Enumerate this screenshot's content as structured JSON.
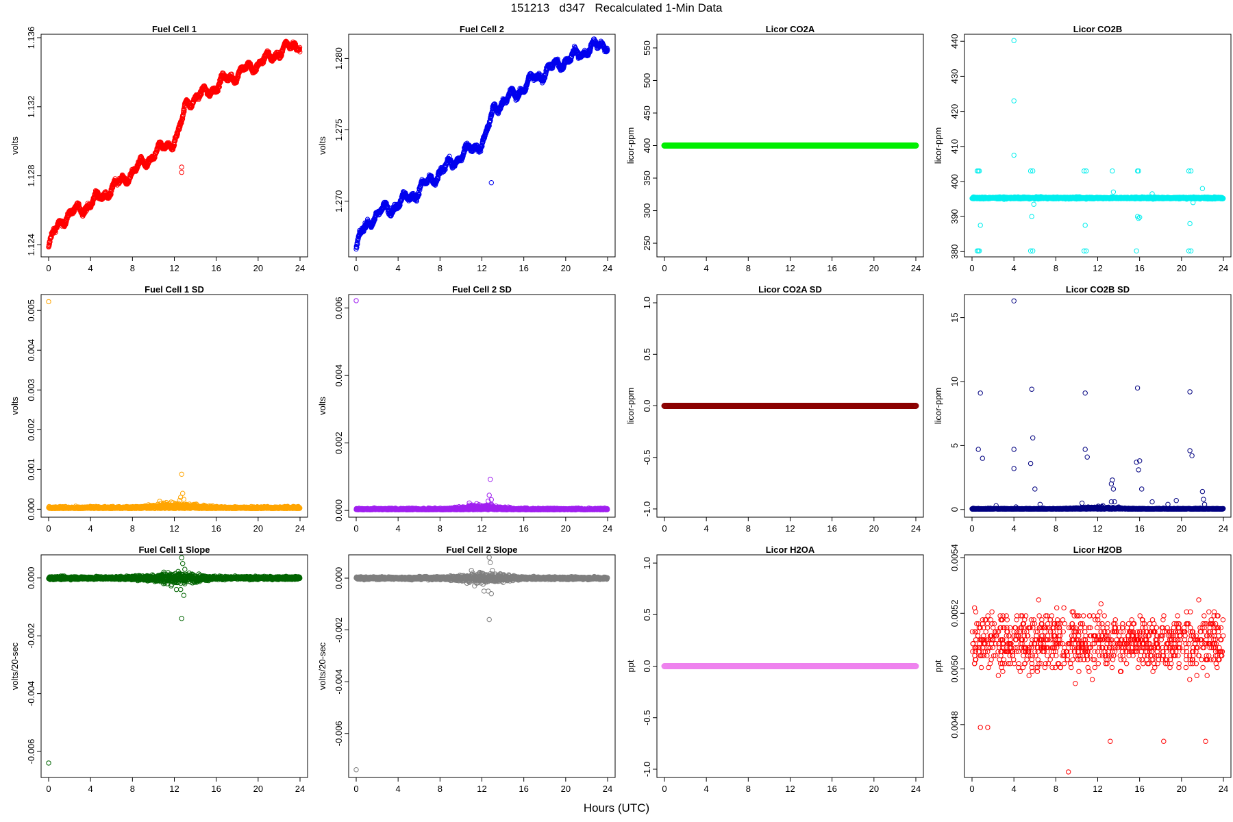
{
  "title": "151213   d347   Recalculated 1-Min Data",
  "xlabel_common": "Hours (UTC)",
  "chart_data": [
    {
      "type": "scatter",
      "title": "Fuel Cell 1",
      "ylabel": "volts",
      "color": "#ff0000",
      "xlim": [
        0,
        24
      ],
      "ylim": [
        1.1233,
        1.1362
      ],
      "xticks": [
        0,
        4,
        8,
        12,
        16,
        20,
        24
      ],
      "yticks": [
        1.124,
        1.128,
        1.132,
        1.136
      ],
      "ytick_labels": [
        "1.124",
        "1.128",
        "1.132",
        "1.136"
      ],
      "pattern": "trend",
      "trend_points": [
        [
          0,
          1.1238
        ],
        [
          0.6,
          1.1248
        ],
        [
          1.5,
          1.1256
        ],
        [
          2.5,
          1.1259
        ],
        [
          3.5,
          1.1262
        ],
        [
          5.5,
          1.127
        ],
        [
          8,
          1.1282
        ],
        [
          10,
          1.1292
        ],
        [
          12.3,
          1.1302
        ],
        [
          13.2,
          1.1323
        ],
        [
          15,
          1.1328
        ],
        [
          17,
          1.1336
        ],
        [
          19,
          1.1342
        ],
        [
          21,
          1.1348
        ],
        [
          22,
          1.1352
        ],
        [
          24,
          1.1357
        ]
      ],
      "spread": 0.0004,
      "outliers": [
        [
          12.7,
          1.1282
        ],
        [
          12.7,
          1.1285
        ]
      ]
    },
    {
      "type": "scatter",
      "title": "Fuel Cell 2",
      "ylabel": "volts",
      "color": "#0000ee",
      "xlim": [
        0,
        24
      ],
      "ylim": [
        1.2661,
        1.2817
      ],
      "xticks": [
        0,
        4,
        8,
        12,
        16,
        20,
        24
      ],
      "yticks": [
        1.27,
        1.275,
        1.28
      ],
      "ytick_labels": [
        "1.270",
        "1.275",
        "1.280"
      ],
      "pattern": "trend",
      "trend_points": [
        [
          0,
          1.2666
        ],
        [
          0.6,
          1.2679
        ],
        [
          1.5,
          1.2688
        ],
        [
          2.5,
          1.2693
        ],
        [
          3.5,
          1.2696
        ],
        [
          5.5,
          1.2705
        ],
        [
          8,
          1.272
        ],
        [
          10,
          1.2732
        ],
        [
          12.3,
          1.2743
        ],
        [
          13.2,
          1.2766
        ],
        [
          15,
          1.2774
        ],
        [
          17,
          1.2786
        ],
        [
          19,
          1.2795
        ],
        [
          21,
          1.2802
        ],
        [
          22,
          1.2806
        ],
        [
          24,
          1.2811
        ]
      ],
      "spread": 0.0005,
      "outliers": [
        [
          12.9,
          1.2713
        ]
      ]
    },
    {
      "type": "scatter",
      "title": "Licor CO2A",
      "ylabel": "licor-ppm",
      "color": "#00ee00",
      "xlim": [
        0,
        24
      ],
      "ylim": [
        229,
        571
      ],
      "xticks": [
        0,
        4,
        8,
        12,
        16,
        20,
        24
      ],
      "yticks": [
        250,
        300,
        350,
        400,
        450,
        500,
        550
      ],
      "ytick_labels": [
        "250",
        "300",
        "350",
        "400",
        "450",
        "500",
        "550"
      ],
      "pattern": "flat",
      "value": 400
    },
    {
      "type": "scatter",
      "title": "Licor CO2B",
      "ylabel": "licor-ppm",
      "color": "#00eeee",
      "xlim": [
        0,
        24
      ],
      "ylim": [
        378.5,
        442
      ],
      "xticks": [
        0,
        4,
        8,
        12,
        16,
        20,
        24
      ],
      "yticks": [
        380,
        390,
        400,
        410,
        420,
        430,
        440
      ],
      "ytick_labels": [
        "380",
        "390",
        "400",
        "410",
        "420",
        "430",
        "440"
      ],
      "pattern": "noisy",
      "value": 395.3,
      "spread": 0.5,
      "outliers": [
        [
          4.0,
          440.2
        ],
        [
          4.0,
          423.0
        ],
        [
          4.0,
          407.5
        ],
        [
          0.5,
          403
        ],
        [
          0.6,
          403
        ],
        [
          0.7,
          403
        ],
        [
          5.6,
          403
        ],
        [
          5.8,
          403
        ],
        [
          10.7,
          403
        ],
        [
          10.9,
          403
        ],
        [
          13.4,
          403
        ],
        [
          15.8,
          403
        ],
        [
          15.9,
          403
        ],
        [
          20.7,
          403
        ],
        [
          20.9,
          403
        ],
        [
          0.5,
          380.2
        ],
        [
          0.6,
          380.2
        ],
        [
          0.7,
          380.2
        ],
        [
          5.6,
          380.2
        ],
        [
          5.8,
          380.2
        ],
        [
          10.7,
          380.2
        ],
        [
          10.9,
          380.2
        ],
        [
          15.7,
          380.2
        ],
        [
          20.7,
          380.2
        ],
        [
          20.9,
          380.2
        ],
        [
          15.8,
          390
        ],
        [
          15.9,
          389.5
        ],
        [
          16.0,
          389.8
        ],
        [
          5.7,
          390
        ],
        [
          0.8,
          387.5
        ],
        [
          10.8,
          387.5
        ],
        [
          20.8,
          388
        ],
        [
          13.5,
          397
        ],
        [
          22.0,
          398
        ],
        [
          17.2,
          396.5
        ],
        [
          5.9,
          393.5
        ],
        [
          21.1,
          394
        ]
      ]
    },
    {
      "type": "scatter",
      "title": "Fuel Cell 1 SD",
      "ylabel": "volts",
      "color": "#ffa500",
      "xlim": [
        0,
        24
      ],
      "ylim": [
        -0.0002,
        0.0054
      ],
      "xticks": [
        0,
        4,
        8,
        12,
        16,
        20,
        24
      ],
      "yticks": [
        0.0,
        0.001,
        0.002,
        0.003,
        0.004,
        0.005
      ],
      "ytick_labels": [
        "0.000",
        "0.001",
        "0.002",
        "0.003",
        "0.004",
        "0.005"
      ],
      "pattern": "sd",
      "value": 2e-05,
      "spread": 4e-05,
      "outliers": [
        [
          0,
          0.00522
        ],
        [
          12.7,
          0.00088
        ],
        [
          12.8,
          0.0004
        ],
        [
          12.6,
          0.0003
        ],
        [
          12.9,
          0.00025
        ],
        [
          12.5,
          0.00022
        ],
        [
          10.6,
          0.0002
        ],
        [
          11.7,
          0.00018
        ]
      ]
    },
    {
      "type": "scatter",
      "title": "Fuel Cell 2 SD",
      "ylabel": "volts",
      "color": "#a020f0",
      "xlim": [
        0,
        24
      ],
      "ylim": [
        -0.0002,
        0.0064
      ],
      "xticks": [
        0,
        4,
        8,
        12,
        16,
        20,
        24
      ],
      "yticks": [
        0.0,
        0.002,
        0.004,
        0.006
      ],
      "ytick_labels": [
        "0.000",
        "0.002",
        "0.004",
        "0.006"
      ],
      "pattern": "sd",
      "value": 2e-05,
      "spread": 4e-05,
      "outliers": [
        [
          0,
          0.00622
        ],
        [
          12.8,
          0.00092
        ],
        [
          12.7,
          0.00045
        ],
        [
          12.9,
          0.00032
        ],
        [
          12.6,
          0.00028
        ],
        [
          10.8,
          0.00022
        ],
        [
          11.5,
          0.0002
        ]
      ]
    },
    {
      "type": "scatter",
      "title": "Licor CO2A SD",
      "ylabel": "licor-ppm",
      "color": "#8b0000",
      "xlim": [
        0,
        24
      ],
      "ylim": [
        -1.08,
        1.08
      ],
      "xticks": [
        0,
        4,
        8,
        12,
        16,
        20,
        24
      ],
      "yticks": [
        -1.0,
        -0.5,
        0.0,
        0.5,
        1.0
      ],
      "ytick_labels": [
        "-1.0",
        "-0.5",
        "0.0",
        "0.5",
        "1.0"
      ],
      "pattern": "flat",
      "value": 0
    },
    {
      "type": "scatter",
      "title": "Licor CO2B SD",
      "ylabel": "licor-ppm",
      "color": "#000080",
      "xlim": [
        0,
        24
      ],
      "ylim": [
        -0.6,
        16.8
      ],
      "xticks": [
        0,
        4,
        8,
        12,
        16,
        20,
        24
      ],
      "yticks": [
        0,
        5,
        10,
        15
      ],
      "ytick_labels": [
        "0",
        "5",
        "10",
        "15"
      ],
      "pattern": "sd",
      "value": 0.03,
      "spread": 0.05,
      "outliers": [
        [
          4.0,
          16.3
        ],
        [
          0.8,
          9.1
        ],
        [
          5.7,
          9.4
        ],
        [
          10.8,
          9.1
        ],
        [
          15.8,
          9.5
        ],
        [
          20.8,
          9.2
        ],
        [
          0.6,
          4.7
        ],
        [
          1.0,
          4.0
        ],
        [
          4.0,
          4.7
        ],
        [
          4.0,
          3.2
        ],
        [
          5.8,
          5.6
        ],
        [
          5.6,
          3.6
        ],
        [
          6.0,
          1.6
        ],
        [
          10.8,
          4.7
        ],
        [
          11.0,
          4.1
        ],
        [
          13.4,
          2.3
        ],
        [
          13.3,
          2.0
        ],
        [
          13.5,
          1.6
        ],
        [
          13.3,
          0.6
        ],
        [
          13.6,
          0.6
        ],
        [
          15.7,
          3.7
        ],
        [
          16.0,
          3.8
        ],
        [
          15.9,
          3.1
        ],
        [
          16.2,
          1.6
        ],
        [
          20.8,
          4.6
        ],
        [
          21.0,
          4.2
        ],
        [
          22.0,
          1.4
        ],
        [
          22.1,
          0.8
        ],
        [
          22.2,
          0.4
        ],
        [
          17.2,
          0.6
        ],
        [
          14.0,
          0.2
        ],
        [
          18.7,
          0.4
        ],
        [
          2.3,
          0.3
        ],
        [
          4.2,
          0.2
        ],
        [
          12.5,
          0.3
        ],
        [
          10.5,
          0.5
        ],
        [
          6.5,
          0.4
        ],
        [
          19.5,
          0.7
        ]
      ]
    },
    {
      "type": "scatter",
      "title": "Fuel Cell 1 Slope",
      "ylabel": "volts/20-sec",
      "color": "#006400",
      "xlim": [
        0,
        24
      ],
      "ylim": [
        -0.0069,
        0.0008
      ],
      "xticks": [
        0,
        4,
        8,
        12,
        16,
        20,
        24
      ],
      "yticks": [
        -0.006,
        -0.004,
        -0.002,
        0.0
      ],
      "ytick_labels": [
        "-0.006",
        "-0.004",
        "-0.002",
        "0.000"
      ],
      "pattern": "slope",
      "value": 0,
      "spread": 5e-05,
      "outliers": [
        [
          0,
          -0.0064
        ],
        [
          12.7,
          0.0007
        ],
        [
          12.8,
          0.0005
        ],
        [
          12.9,
          -0.0006
        ],
        [
          12.7,
          -0.0014
        ],
        [
          12.6,
          -0.0004
        ],
        [
          13.0,
          0.0003
        ],
        [
          11.0,
          0.0002
        ],
        [
          11.3,
          -0.0002
        ],
        [
          12.2,
          -0.0004
        ]
      ]
    },
    {
      "type": "scatter",
      "title": "Fuel Cell 2 Slope",
      "ylabel": "volts/20-sec",
      "color": "#7f7f7f",
      "xlim": [
        0,
        24
      ],
      "ylim": [
        -0.0077,
        0.0009
      ],
      "xticks": [
        0,
        4,
        8,
        12,
        16,
        20,
        24
      ],
      "yticks": [
        -0.006,
        -0.004,
        -0.002,
        0.0
      ],
      "ytick_labels": [
        "-0.006",
        "-0.004",
        "-0.002",
        "0.000"
      ],
      "pattern": "slope",
      "value": 0,
      "spread": 5e-05,
      "outliers": [
        [
          0,
          -0.0074
        ],
        [
          12.7,
          0.0008
        ],
        [
          12.8,
          0.0006
        ],
        [
          12.9,
          -0.0006
        ],
        [
          12.7,
          -0.0016
        ],
        [
          12.6,
          -0.0005
        ],
        [
          13.0,
          0.0003
        ],
        [
          11.0,
          0.0003
        ],
        [
          11.3,
          -0.0003
        ],
        [
          12.2,
          -0.0005
        ]
      ]
    },
    {
      "type": "scatter",
      "title": "Licor H2OA",
      "ylabel": "ppt",
      "color": "#ee82ee",
      "xlim": [
        0,
        24
      ],
      "ylim": [
        -1.08,
        1.08
      ],
      "xticks": [
        0,
        4,
        8,
        12,
        16,
        20,
        24
      ],
      "yticks": [
        -1.0,
        -0.5,
        0.0,
        0.5,
        1.0
      ],
      "ytick_labels": [
        "-1.0",
        "-0.5",
        "0.0",
        "0.5",
        "1.0"
      ],
      "pattern": "flat",
      "value": 0
    },
    {
      "type": "scatter",
      "title": "Licor H2OB",
      "ylabel": "ppt",
      "color": "#ff0000",
      "xlim": [
        0,
        24
      ],
      "ylim": [
        0.00461,
        0.00541
      ],
      "xticks": [
        0,
        4,
        8,
        12,
        16,
        20,
        24
      ],
      "yticks": [
        0.0048,
        0.005,
        0.0052,
        0.0054
      ],
      "ytick_labels": [
        "0.0048",
        "0.0050",
        "0.0052",
        "0.0054"
      ],
      "pattern": "quantized",
      "value": 0.0051,
      "step": 1.43e-05,
      "spread": 0.00018,
      "outliers": [
        [
          9.2,
          0.00463
        ],
        [
          13.2,
          0.00474
        ],
        [
          18.3,
          0.00474
        ],
        [
          0.8,
          0.00479
        ],
        [
          1.5,
          0.00479
        ],
        [
          22.3,
          0.00474
        ]
      ]
    }
  ]
}
